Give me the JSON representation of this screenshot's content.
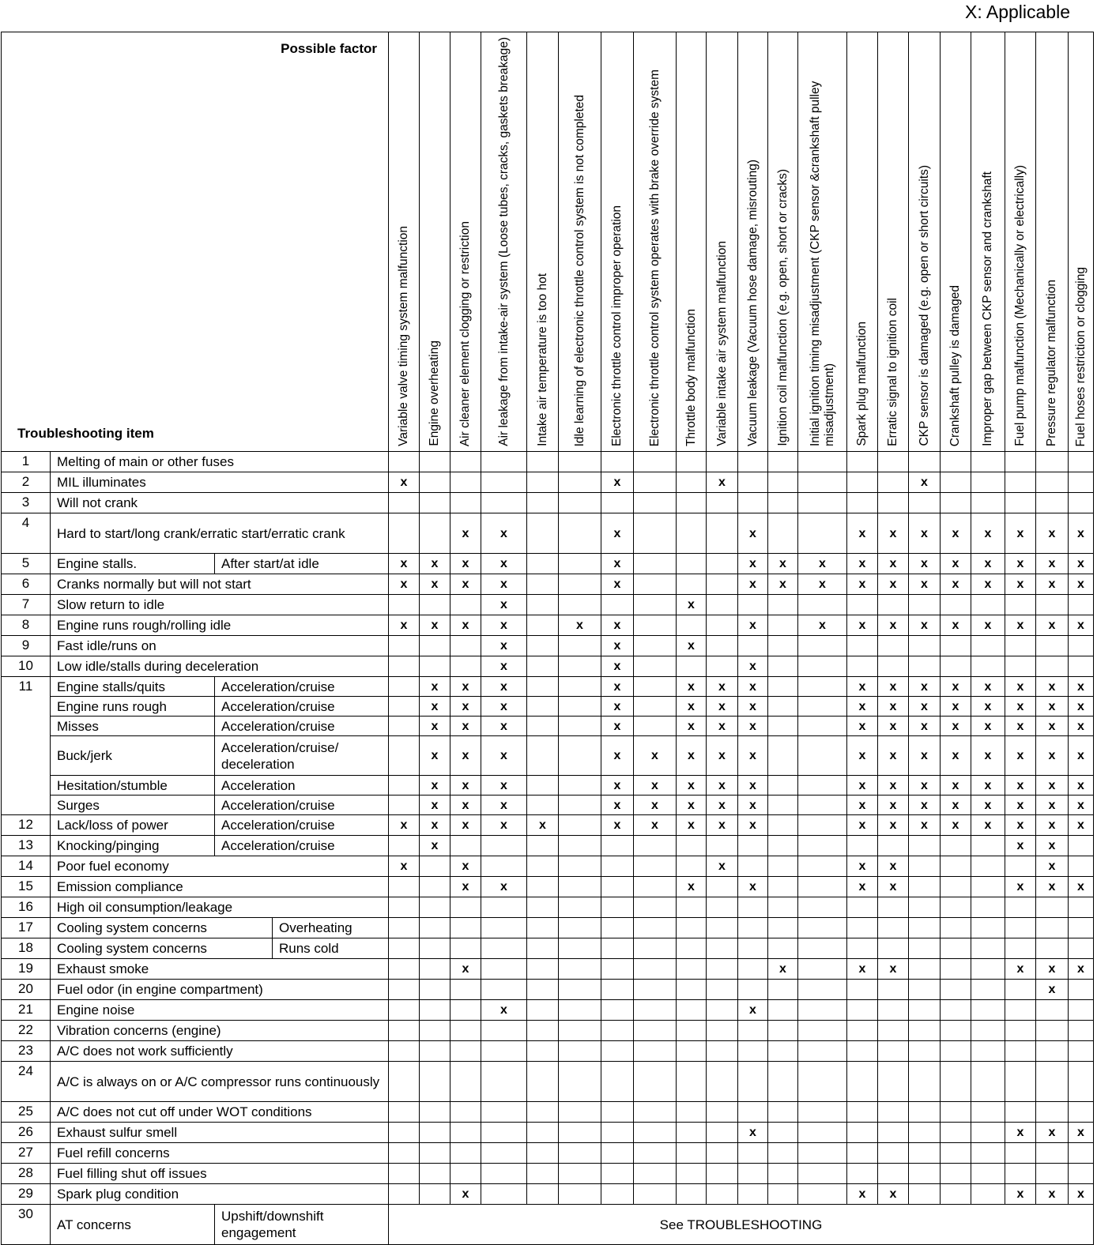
{
  "legend": "X: Applicable",
  "header": {
    "possible_factor": "Possible factor",
    "troubleshooting_item": "Troubleshooting item"
  },
  "mark": "x",
  "factors": [
    "Variable valve timing system malfunction",
    "Engine overheating",
    "Air cleaner element clogging or restriction",
    "Air leakage from intake-air system (Loose tubes, cracks, gaskets breakage)",
    "Intake air temperature is too hot",
    "Idle learning of electronic throttle control system is not completed",
    "Electronic throttle control improper operation",
    "Electronic throttle control system operates with brake override system",
    "Throttle body malfunction",
    "Variable intake air system malfunction",
    "Vacuum leakage (Vacuum hose damage, misrouting)",
    "Ignition coil malfunction (e.g. open, short or cracks)",
    "Initial ignition timing misadjustment (CKP sensor &crankshaft pulley misadjustment)",
    "Spark plug malfunction",
    "Erratic signal to ignition coil",
    "CKP sensor is damaged (e.g. open or short circuits)",
    "Crankshaft pulley is damaged",
    "Improper gap between CKP sensor and crankshaft",
    "Fuel pump malfunction (Mechanically or electrically)",
    "Pressure regulator malfunction",
    "Fuel hoses restriction or clogging"
  ],
  "rows": [
    {
      "num": "1",
      "label": "Melting of main or other fuses",
      "marks": []
    },
    {
      "num": "2",
      "label": "MIL illuminates",
      "marks": [
        1,
        7,
        10,
        16
      ]
    },
    {
      "num": "3",
      "label": "Will not crank",
      "marks": []
    },
    {
      "num": "4",
      "label": "Hard to start/long crank/erratic start/erratic crank",
      "double": true,
      "marks": [
        3,
        4,
        7,
        11,
        14,
        15,
        16,
        17,
        18,
        19,
        20,
        21
      ]
    },
    {
      "num": "5",
      "label": "Engine stalls.",
      "sub": "After start/at idle",
      "marks": [
        1,
        2,
        3,
        4,
        7,
        11,
        12,
        13,
        14,
        15,
        16,
        17,
        18,
        19,
        20,
        21
      ]
    },
    {
      "num": "6",
      "label": "Cranks normally but will not start",
      "marks": [
        1,
        2,
        3,
        4,
        7,
        11,
        12,
        13,
        14,
        15,
        16,
        17,
        18,
        19,
        20,
        21
      ]
    },
    {
      "num": "7",
      "label": "Slow return to idle",
      "marks": [
        4,
        9
      ]
    },
    {
      "num": "8",
      "label": "Engine runs rough/rolling idle",
      "marks": [
        1,
        2,
        3,
        4,
        6,
        7,
        11,
        13,
        14,
        15,
        16,
        17,
        18,
        19,
        20,
        21
      ]
    },
    {
      "num": "9",
      "label": "Fast idle/runs on",
      "marks": [
        4,
        7,
        9
      ]
    },
    {
      "num": "10",
      "label": "Low idle/stalls during deceleration",
      "marks": [
        4,
        7,
        11
      ]
    },
    {
      "num": "11",
      "span": 6,
      "label": "Engine stalls/quits",
      "sub": "Acceleration/cruise",
      "marks": [
        2,
        3,
        4,
        7,
        9,
        10,
        11,
        14,
        15,
        16,
        17,
        18,
        19,
        20,
        21
      ]
    },
    {
      "label": "Engine runs rough",
      "sub": "Acceleration/cruise",
      "marks": [
        2,
        3,
        4,
        7,
        9,
        10,
        11,
        14,
        15,
        16,
        17,
        18,
        19,
        20,
        21
      ]
    },
    {
      "label": "Misses",
      "sub": "Acceleration/cruise",
      "marks": [
        2,
        3,
        4,
        7,
        9,
        10,
        11,
        14,
        15,
        16,
        17,
        18,
        19,
        20,
        21
      ]
    },
    {
      "label": "Buck/jerk",
      "sub": "Acceleration/cruise/ deceleration",
      "double": true,
      "marks": [
        2,
        3,
        4,
        7,
        8,
        9,
        10,
        11,
        14,
        15,
        16,
        17,
        18,
        19,
        20,
        21
      ]
    },
    {
      "label": "Hesitation/stumble",
      "sub": "Acceleration",
      "marks": [
        2,
        3,
        4,
        7,
        8,
        9,
        10,
        11,
        14,
        15,
        16,
        17,
        18,
        19,
        20,
        21
      ]
    },
    {
      "label": "Surges",
      "sub": "Acceleration/cruise",
      "marks": [
        2,
        3,
        4,
        7,
        8,
        9,
        10,
        11,
        14,
        15,
        16,
        17,
        18,
        19,
        20,
        21
      ]
    },
    {
      "num": "12",
      "label": "Lack/loss of power",
      "sub": "Acceleration/cruise",
      "marks": [
        1,
        2,
        3,
        4,
        5,
        7,
        8,
        9,
        10,
        11,
        14,
        15,
        16,
        17,
        18,
        19,
        20,
        21
      ]
    },
    {
      "num": "13",
      "label": "Knocking/pinging",
      "sub": "Acceleration/cruise",
      "marks": [
        2,
        19,
        20
      ]
    },
    {
      "num": "14",
      "label": "Poor fuel economy",
      "marks": [
        1,
        3,
        10,
        14,
        15,
        20
      ]
    },
    {
      "num": "15",
      "label": "Emission compliance",
      "marks": [
        3,
        4,
        9,
        11,
        14,
        15,
        19,
        20,
        21
      ]
    },
    {
      "num": "16",
      "label": "High oil consumption/leakage",
      "marks": []
    },
    {
      "num": "17",
      "label": "Cooling system concerns",
      "sub2": "Overheating",
      "marks": []
    },
    {
      "num": "18",
      "label": "Cooling system concerns",
      "sub2": "Runs cold",
      "marks": []
    },
    {
      "num": "19",
      "label": "Exhaust smoke",
      "marks": [
        3,
        12,
        14,
        15,
        19,
        20,
        21
      ]
    },
    {
      "num": "20",
      "label": "Fuel odor (in engine compartment)",
      "marks": [
        20
      ]
    },
    {
      "num": "21",
      "label": "Engine noise",
      "marks": [
        4,
        11
      ]
    },
    {
      "num": "22",
      "label": "Vibration concerns (engine)",
      "marks": []
    },
    {
      "num": "23",
      "label": "A/C does not work sufficiently",
      "marks": []
    },
    {
      "num": "24",
      "label": "A/C is always on or A/C compressor runs continuously",
      "double": true,
      "marks": []
    },
    {
      "num": "25",
      "label": "A/C does not cut off under WOT conditions",
      "marks": []
    },
    {
      "num": "26",
      "label": "Exhaust sulfur smell",
      "marks": [
        11,
        19,
        20,
        21
      ]
    },
    {
      "num": "27",
      "label": "Fuel refill concerns",
      "marks": []
    },
    {
      "num": "28",
      "label": "Fuel filling shut off issues",
      "marks": []
    },
    {
      "num": "29",
      "label": "Spark plug condition",
      "marks": [
        3,
        14,
        15,
        19,
        20,
        21
      ]
    },
    {
      "num": "30",
      "label": "AT concerns",
      "sub": "Upshift/downshift engagement",
      "double": true,
      "see": "See TROUBLESHOOTING"
    }
  ]
}
